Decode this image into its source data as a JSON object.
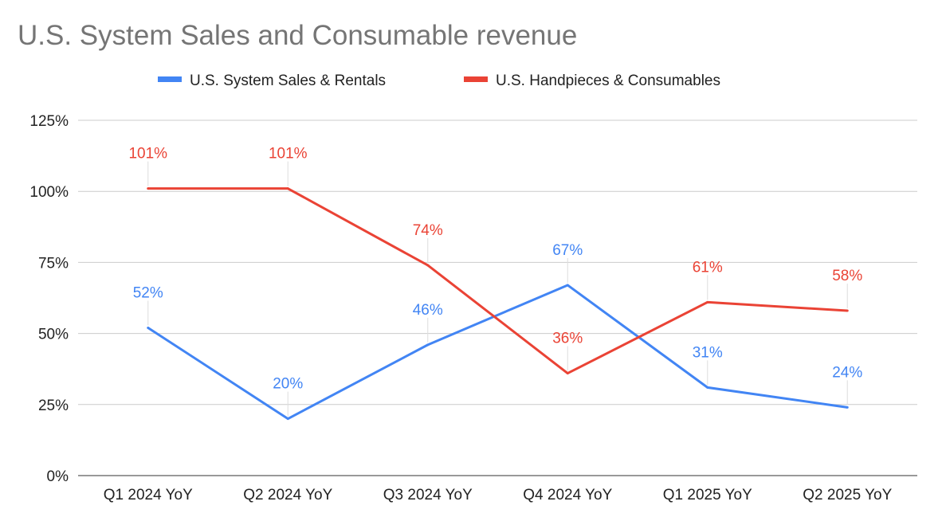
{
  "chart_data": {
    "type": "line",
    "title": "U.S. System Sales and Consumable revenue",
    "xlabel": "",
    "ylabel": "",
    "categories": [
      "Q1 2024 YoY",
      "Q2 2024 YoY",
      "Q3 2024 YoY",
      "Q4 2024 YoY",
      "Q1 2025 YoY",
      "Q2 2025 YoY"
    ],
    "yticks": [
      "0%",
      "25%",
      "50%",
      "75%",
      "100%",
      "125%"
    ],
    "ylim": [
      0,
      125
    ],
    "grid": true,
    "legend_position": "top",
    "series": [
      {
        "name": "U.S. System Sales & Rentals",
        "color": "#4285f4",
        "values": [
          52,
          20,
          46,
          67,
          31,
          24
        ],
        "labels": [
          "52%",
          "20%",
          "46%",
          "67%",
          "31%",
          "24%"
        ]
      },
      {
        "name": "U.S. Handpieces & Consumables",
        "color": "#ea4335",
        "values": [
          101,
          101,
          74,
          36,
          61,
          58
        ],
        "labels": [
          "101%",
          "101%",
          "74%",
          "36%",
          "61%",
          "58%"
        ]
      }
    ]
  }
}
